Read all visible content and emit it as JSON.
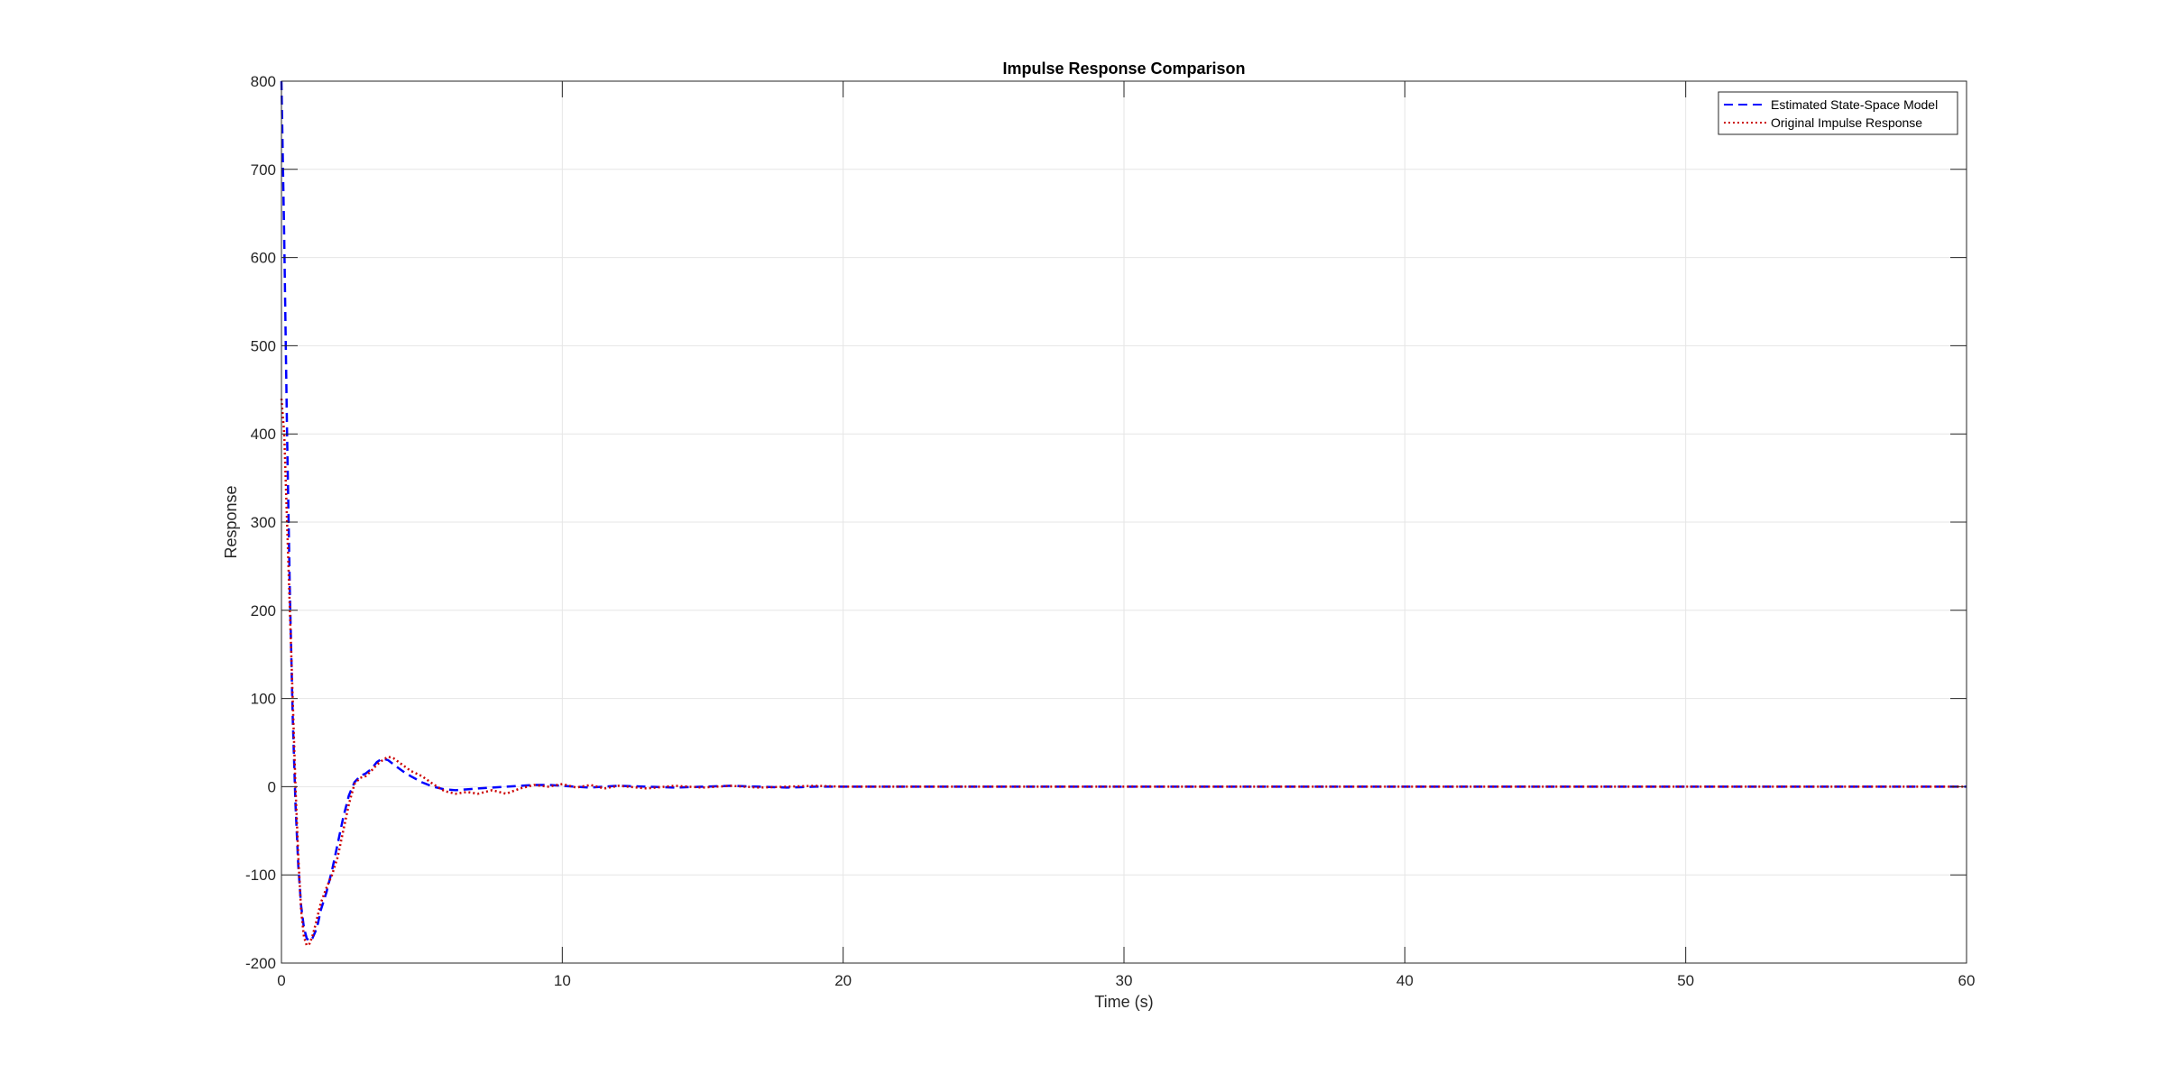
{
  "chart_data": {
    "type": "line",
    "title": "Impulse Response Comparison",
    "xlabel": "Time (s)",
    "ylabel": "Response",
    "xlim": [
      0,
      60
    ],
    "ylim": [
      -200,
      800
    ],
    "xticks": [
      0,
      10,
      20,
      30,
      40,
      50,
      60
    ],
    "yticks": [
      -200,
      -100,
      0,
      100,
      200,
      300,
      400,
      500,
      600,
      700,
      800
    ],
    "grid": true,
    "legend_position": "top-right",
    "series": [
      {
        "name": "Estimated State-Space Model",
        "color": "#0000FF",
        "line_style": "dashed",
        "x": [
          0,
          0.1,
          0.2,
          0.3,
          0.4,
          0.5,
          0.6,
          0.7,
          0.8,
          0.9,
          1.0,
          1.1,
          1.2,
          1.3,
          1.4,
          1.6,
          1.8,
          2.0,
          2.2,
          2.4,
          2.6,
          2.8,
          3.0,
          3.2,
          3.4,
          3.6,
          3.8,
          4.0,
          4.3,
          4.6,
          5.0,
          5.4,
          5.8,
          6.2,
          6.6,
          7.0,
          7.5,
          8.0,
          8.5,
          9.0,
          9.5,
          10.0,
          10.5,
          11.0,
          11.5,
          12.0,
          13.0,
          14.0,
          15.0,
          16.0,
          17.0,
          18.0,
          19.0,
          20.0,
          22.0,
          24.0,
          26.0,
          28.0,
          30.0,
          35.0,
          40.0,
          45.0,
          50.0,
          55.0,
          60.0
        ],
        "y": [
          800,
          620,
          400,
          220,
          80,
          -20,
          -90,
          -135,
          -160,
          -172,
          -175,
          -172,
          -165,
          -155,
          -140,
          -120,
          -95,
          -65,
          -35,
          -10,
          5,
          12,
          15,
          20,
          28,
          32,
          30,
          25,
          18,
          12,
          5,
          0,
          -3,
          -4,
          -3,
          -2,
          -1,
          0,
          1,
          2,
          2,
          1,
          0,
          -1,
          0,
          1,
          0,
          -1,
          0,
          1,
          0,
          -1,
          0,
          0,
          0,
          0,
          0,
          0,
          0,
          0,
          0,
          0,
          0,
          0,
          0
        ]
      },
      {
        "name": "Original Impulse Response",
        "color": "#CC0000",
        "line_style": "dotted",
        "x": [
          0,
          0.1,
          0.2,
          0.3,
          0.4,
          0.5,
          0.6,
          0.7,
          0.8,
          0.9,
          1.0,
          1.1,
          1.2,
          1.3,
          1.4,
          1.6,
          1.8,
          2.0,
          2.2,
          2.4,
          2.6,
          2.8,
          3.0,
          3.2,
          3.4,
          3.6,
          3.8,
          4.0,
          4.3,
          4.6,
          5.0,
          5.4,
          5.8,
          6.2,
          6.6,
          7.0,
          7.5,
          8.0,
          8.5,
          9.0,
          9.5,
          10.0,
          10.5,
          11.0,
          11.5,
          12.0,
          13.0,
          14.0,
          15.0,
          16.0,
          17.0,
          18.0,
          19.0,
          20.0,
          22.0,
          24.0,
          26.0,
          28.0,
          30.0,
          35.0,
          40.0,
          45.0,
          50.0,
          55.0,
          60.0
        ],
        "y": [
          440,
          400,
          300,
          200,
          100,
          0,
          -80,
          -140,
          -170,
          -180,
          -178,
          -170,
          -158,
          -145,
          -132,
          -115,
          -100,
          -80,
          -50,
          -20,
          3,
          10,
          12,
          18,
          25,
          30,
          34,
          32,
          25,
          18,
          12,
          3,
          -5,
          -8,
          -6,
          -8,
          -4,
          -8,
          -2,
          2,
          0,
          3,
          -1,
          2,
          -2,
          1,
          -2,
          1,
          -1,
          1,
          -1,
          0,
          1,
          0,
          0,
          0,
          0,
          0,
          0,
          0,
          0,
          0,
          0,
          0,
          0
        ]
      }
    ]
  }
}
